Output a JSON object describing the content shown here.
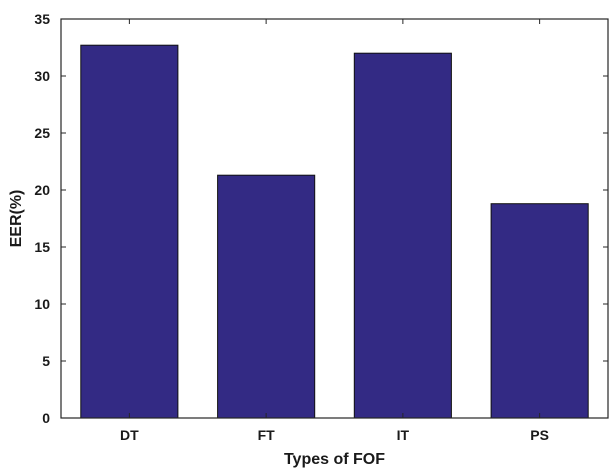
{
  "chart_data": {
    "type": "bar",
    "categories": [
      "DT",
      "FT",
      "IT",
      "PS"
    ],
    "values": [
      32.7,
      21.3,
      32.0,
      18.8
    ],
    "xlabel": "Types of FOF",
    "ylabel": "EER(%)",
    "ylim": [
      0,
      35
    ],
    "yticks": [
      0,
      5,
      10,
      15,
      20,
      25,
      30,
      35
    ],
    "bar_color": "#332a84",
    "grid": false,
    "legend": "none"
  }
}
